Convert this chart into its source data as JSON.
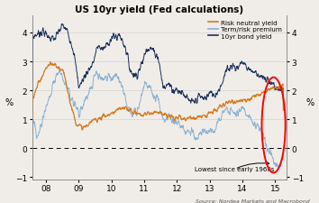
{
  "title": "US 10yr yield (Fed calculations)",
  "ylabel_left": "%",
  "ylabel_right": "%",
  "source": "Source: Nordea Markets and Macrobond",
  "ylim": [
    -1.1,
    4.6
  ],
  "yticks": [
    -1,
    0,
    1,
    2,
    3,
    4
  ],
  "annotation": "Lowest since early 1960s",
  "legend": [
    "Risk neutral yield",
    "Term/risk premium",
    "10yr bond yield"
  ],
  "colors": {
    "risk_neutral": "#d47b20",
    "term_premium": "#8ab0d0",
    "bond_yield": "#1a2f5a"
  },
  "background": "#f0ede8",
  "xlim": [
    2007.58,
    2015.35
  ],
  "xticks": [
    2008,
    2009,
    2010,
    2011,
    2012,
    2013,
    2014,
    2015
  ],
  "xticklabels": [
    "08",
    "09",
    "10",
    "11",
    "12",
    "13",
    "14",
    "15"
  ]
}
